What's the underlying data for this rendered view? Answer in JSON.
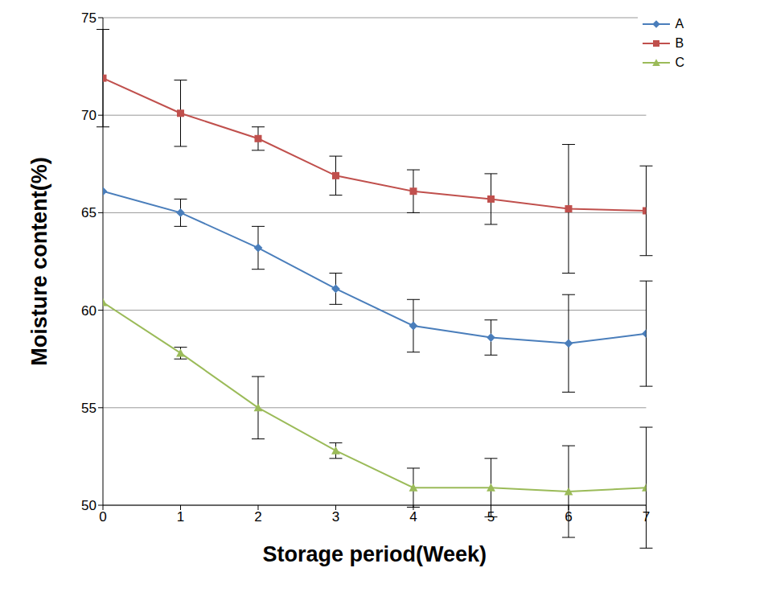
{
  "chart_data": {
    "type": "line",
    "x_label": "Storage period(Week)",
    "y_label": "Moisture content(%)",
    "x": [
      0,
      1,
      2,
      3,
      4,
      5,
      6,
      7
    ],
    "xlim": [
      0,
      7
    ],
    "xticks": [
      0,
      1,
      2,
      3,
      4,
      5,
      6,
      7
    ],
    "ylim": [
      50,
      75
    ],
    "yticks": [
      50,
      55,
      60,
      65,
      70,
      75
    ],
    "grid": true,
    "legend": "top right",
    "series": [
      {
        "name": "A",
        "color": "#4a7ebb",
        "marker": "diamond",
        "values": [
          66.1,
          65.0,
          63.2,
          61.1,
          59.2,
          58.6,
          58.3,
          58.8
        ],
        "error": [
          0,
          0.7,
          1.1,
          0.8,
          1.35,
          0.9,
          2.5,
          2.7
        ]
      },
      {
        "name": "B",
        "color": "#c0504d",
        "marker": "square",
        "values": [
          71.9,
          70.1,
          68.8,
          66.9,
          66.1,
          65.7,
          65.2,
          65.1
        ],
        "error": [
          2.5,
          1.7,
          0.6,
          1.0,
          1.1,
          1.3,
          3.3,
          2.3
        ]
      },
      {
        "name": "C",
        "color": "#9bbb59",
        "marker": "triangle",
        "values": [
          60.4,
          57.8,
          55.0,
          52.8,
          50.9,
          50.9,
          50.7,
          50.9
        ],
        "error": [
          0,
          0.3,
          1.6,
          0.4,
          1.0,
          1.5,
          2.35,
          3.1
        ]
      }
    ]
  }
}
